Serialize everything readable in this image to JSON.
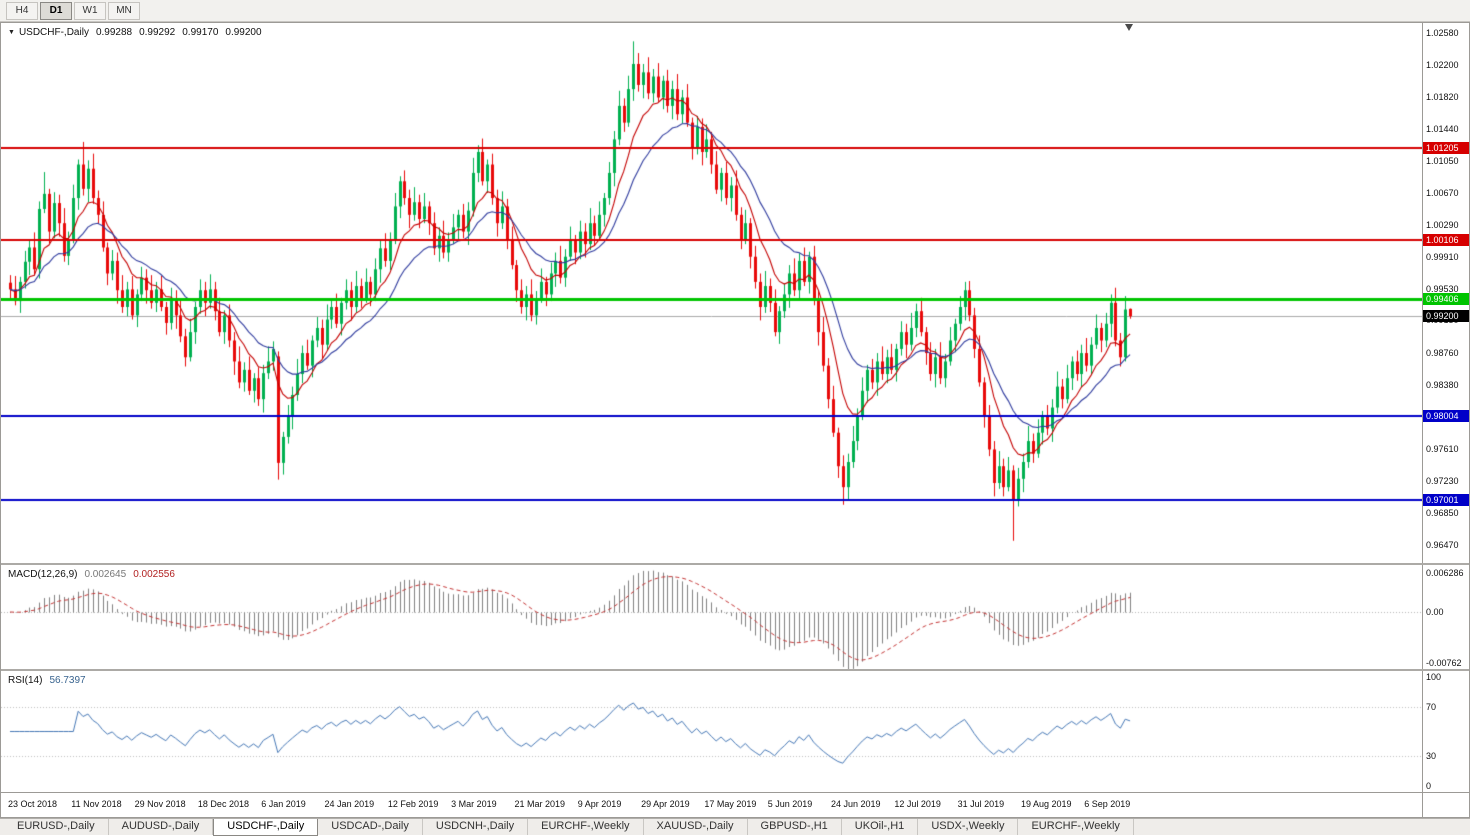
{
  "toolbar": {
    "timeframes": [
      {
        "label": "H4",
        "active": false
      },
      {
        "label": "D1",
        "active": true
      },
      {
        "label": "W1",
        "active": false
      },
      {
        "label": "MN",
        "active": false
      }
    ]
  },
  "chart": {
    "legend": {
      "collapse_icon": "▼",
      "symbol": "USDCHF-,Daily",
      "open": "0.99288",
      "high": "0.99292",
      "low": "0.99170",
      "close": "0.99200"
    },
    "levels": [
      {
        "price": 1.01205,
        "label": "1.01205",
        "color": "#D60000",
        "width": 2
      },
      {
        "price": 1.00106,
        "label": "1.00106",
        "color": "#D60000",
        "width": 2
      },
      {
        "price": 0.99406,
        "label": "0.99406",
        "color": "#00C400",
        "width": 3
      },
      {
        "price": 0.98004,
        "label": "0.98004",
        "color": "#0000C8",
        "width": 2
      },
      {
        "price": 0.97001,
        "label": "0.97001",
        "color": "#0000C8",
        "width": 2
      }
    ],
    "current_price": {
      "price": 0.992,
      "label": "0.99200",
      "line_color": "#A8A8A8",
      "badge_color": "#000000"
    }
  },
  "chart_data": {
    "type": "candlestick",
    "title": "USDCHF-,Daily",
    "symbol": "USDCHF",
    "timeframe": "Daily",
    "colors": {
      "up": "#00B050",
      "down": "#E80A0A"
    },
    "overlays": [
      {
        "name": "ma-fast",
        "method": "ema",
        "period": 9,
        "color": "#C40000"
      },
      {
        "name": "ma-slow",
        "method": "ema",
        "period": 19,
        "color": "#2F3B9E"
      }
    ],
    "price_axis": {
      "max": 1.02699,
      "min": 0.96255,
      "labels": [
        "1.02580",
        "1.02200",
        "1.01820",
        "1.01440",
        "1.01050",
        "1.00670",
        "1.00290",
        "0.99910",
        "0.99530",
        "0.99150",
        "0.98760",
        "0.98380",
        "0.98000",
        "0.97610",
        "0.97230",
        "0.96850",
        "0.96470"
      ]
    },
    "x_ticks": [
      {
        "i": 0,
        "label": "23 Oct 2018"
      },
      {
        "i": 13,
        "label": "11 Nov 2018"
      },
      {
        "i": 26,
        "label": "29 Nov 2018"
      },
      {
        "i": 39,
        "label": "18 Dec 2018"
      },
      {
        "i": 52,
        "label": "6 Jan 2019"
      },
      {
        "i": 65,
        "label": "24 Jan 2019"
      },
      {
        "i": 78,
        "label": "12 Feb 2019"
      },
      {
        "i": 91,
        "label": "3 Mar 2019"
      },
      {
        "i": 104,
        "label": "21 Mar 2019"
      },
      {
        "i": 117,
        "label": "9 Apr 2019"
      },
      {
        "i": 130,
        "label": "29 Apr 2019"
      },
      {
        "i": 143,
        "label": "17 May 2019"
      },
      {
        "i": 156,
        "label": "5 Jun 2019"
      },
      {
        "i": 169,
        "label": "24 Jun 2019"
      },
      {
        "i": 182,
        "label": "12 Jul 2019"
      },
      {
        "i": 195,
        "label": "31 Jul 2019"
      },
      {
        "i": 208,
        "label": "19 Aug 2019"
      },
      {
        "i": 221,
        "label": "6 Sep 2019"
      }
    ],
    "candles": {
      "first_open": 0.996,
      "closes": [
        0.9952,
        0.9938,
        0.9961,
        0.9985,
        1.0002,
        0.9976,
        1.0048,
        1.0066,
        1.0021,
        1.0055,
        1.0031,
        0.9992,
        1.0012,
        1.0061,
        1.0101,
        1.0072,
        1.0096,
        1.0061,
        1.0041,
        1.0002,
        0.9971,
        0.9986,
        0.9951,
        0.9931,
        0.9952,
        0.9921,
        0.9946,
        0.9966,
        0.9951,
        0.9936,
        0.9952,
        0.9931,
        0.9912,
        0.9941,
        0.9921,
        0.9896,
        0.9871,
        0.9901,
        0.9931,
        0.9951,
        0.9936,
        0.9952,
        0.9926,
        0.9901,
        0.9921,
        0.9891,
        0.9866,
        0.9841,
        0.9856,
        0.9831,
        0.9846,
        0.9821,
        0.9852,
        0.9866,
        0.9881,
        0.9745,
        0.9776,
        0.9801,
        0.9826,
        0.9851,
        0.9876,
        0.9861,
        0.9891,
        0.9906,
        0.9886,
        0.9916,
        0.9931,
        0.9911,
        0.9936,
        0.9951,
        0.9931,
        0.9956,
        0.9941,
        0.9961,
        0.9946,
        0.9976,
        1.0001,
        0.9986,
        1.0011,
        1.0051,
        1.0081,
        1.0061,
        1.0041,
        1.0056,
        1.0036,
        1.0051,
        1.0031,
        1.0001,
        1.0016,
        0.9996,
        1.0011,
        1.0026,
        1.0041,
        1.0021,
        1.0046,
        1.0091,
        1.0116,
        1.0081,
        1.0101,
        1.0061,
        1.0031,
        1.0051,
        1.0011,
        0.9981,
        0.9951,
        0.9931,
        0.9946,
        0.9921,
        0.9941,
        0.9961,
        0.9946,
        0.9971,
        0.9986,
        0.9966,
        0.9991,
        1.0011,
        0.9996,
        1.0021,
        1.0006,
        1.0031,
        1.0016,
        1.0041,
        1.0061,
        1.0091,
        1.0131,
        1.0171,
        1.0151,
        1.0191,
        1.0221,
        1.0196,
        1.0211,
        1.0186,
        1.0206,
        1.0181,
        1.0201,
        1.0171,
        1.0191,
        1.0161,
        1.0181,
        1.0151,
        1.0121,
        1.0146,
        1.0116,
        1.0131,
        1.0101,
        1.0071,
        1.0091,
        1.0061,
        1.0076,
        1.0041,
        1.0011,
        1.0031,
        0.9991,
        0.9961,
        0.9931,
        0.9956,
        0.9936,
        0.9901,
        0.9926,
        0.9946,
        0.9971,
        0.9951,
        0.9986,
        0.9961,
        0.9991,
        0.9941,
        0.9901,
        0.9861,
        0.9821,
        0.9781,
        0.9741,
        0.9716,
        0.9746,
        0.9771,
        0.9801,
        0.9831,
        0.9856,
        0.9841,
        0.9866,
        0.9851,
        0.9871,
        0.9856,
        0.9881,
        0.9901,
        0.9886,
        0.9906,
        0.9926,
        0.9901,
        0.9876,
        0.9851,
        0.9871,
        0.9846,
        0.9866,
        0.9891,
        0.9911,
        0.9931,
        0.9951,
        0.9921,
        0.9881,
        0.9841,
        0.9801,
        0.9761,
        0.9721,
        0.9741,
        0.9716,
        0.9736,
        0.9701,
        0.9726,
        0.9746,
        0.9771,
        0.9756,
        0.9781,
        0.9801,
        0.9786,
        0.9811,
        0.9836,
        0.9821,
        0.9846,
        0.9866,
        0.9851,
        0.9876,
        0.9861,
        0.9886,
        0.9906,
        0.9891,
        0.9911,
        0.9936,
        0.9891,
        0.9871,
        0.9928,
        0.992
      ],
      "wick_high_cycle": [
        0.0009,
        0.0016,
        0.0006,
        0.0013,
        0.001,
        0.0018
      ],
      "wick_low_cycle": [
        0.0011,
        0.0005,
        0.0014,
        0.0008,
        0.0016,
        0.0007
      ],
      "overrides": {
        "7": {
          "h": 1.0092
        },
        "15": {
          "h": 1.0128
        },
        "55": {
          "o": 0.9872,
          "h": 0.9878,
          "l": 0.9725
        },
        "96": {
          "h": 1.0124
        },
        "128": {
          "h": 1.0248
        },
        "171": {
          "l": 0.9695
        },
        "197": {
          "h": 0.9962
        },
        "206": {
          "l": 0.9652
        },
        "230": {
          "o": 0.99288,
          "h": 0.99292,
          "l": 0.9917
        }
      }
    }
  },
  "macd": {
    "title": "MACD(12,26,9)",
    "value_main": "0.002645",
    "value_signal": "0.002556",
    "params": {
      "fast": 12,
      "slow": 26,
      "signal": 9
    },
    "scale_labels": [
      "0.006286",
      "0.00",
      "-0.00762"
    ],
    "scale_max": 0.006286,
    "scale_min": -0.00762,
    "histogram_color": "#808080",
    "signal_color": "#C33333"
  },
  "rsi": {
    "title": "RSI(14)",
    "value": "56.7397",
    "period": 14,
    "scale_labels": [
      "100",
      "70",
      "30",
      "0"
    ],
    "levels": [
      70,
      30
    ],
    "line_color": "#4577B5"
  },
  "tabs": [
    {
      "label": "EURUSD-,Daily",
      "active": false
    },
    {
      "label": "AUDUSD-,Daily",
      "active": false
    },
    {
      "label": "USDCHF-,Daily",
      "active": true
    },
    {
      "label": "USDCAD-,Daily",
      "active": false
    },
    {
      "label": "USDCNH-,Daily",
      "active": false
    },
    {
      "label": "EURCHF-,Weekly",
      "active": false
    },
    {
      "label": "XAUUSD-,Daily",
      "active": false
    },
    {
      "label": "GBPUSD-,H1",
      "active": false
    },
    {
      "label": "UKOil-,H1",
      "active": false
    },
    {
      "label": "USDX-,Weekly",
      "active": false
    },
    {
      "label": "EURCHF-,Weekly",
      "active": false
    }
  ]
}
